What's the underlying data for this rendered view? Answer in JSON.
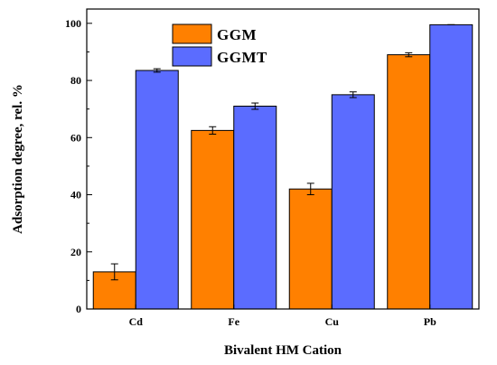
{
  "chart_data": {
    "type": "bar",
    "xlabel": "Bivalent HM Cation",
    "ylabel": "Adsorption degree, rel. %",
    "categories": [
      "Cd",
      "Fe",
      "Cu",
      "Pb"
    ],
    "ylim": [
      0,
      105
    ],
    "yticks": [
      0,
      20,
      40,
      60,
      80,
      100
    ],
    "legend_position": "top-center",
    "grid": false,
    "series": [
      {
        "name": "GGM",
        "color": "#ff8000",
        "values": [
          13,
          62.5,
          42,
          89
        ],
        "errors": [
          2.8,
          1.3,
          2.0,
          0.7
        ]
      },
      {
        "name": "GGMT",
        "color": "#5b6cff",
        "values": [
          83.5,
          71,
          75,
          99.5
        ],
        "errors": [
          0.6,
          1.1,
          1.0,
          0
        ]
      }
    ]
  }
}
